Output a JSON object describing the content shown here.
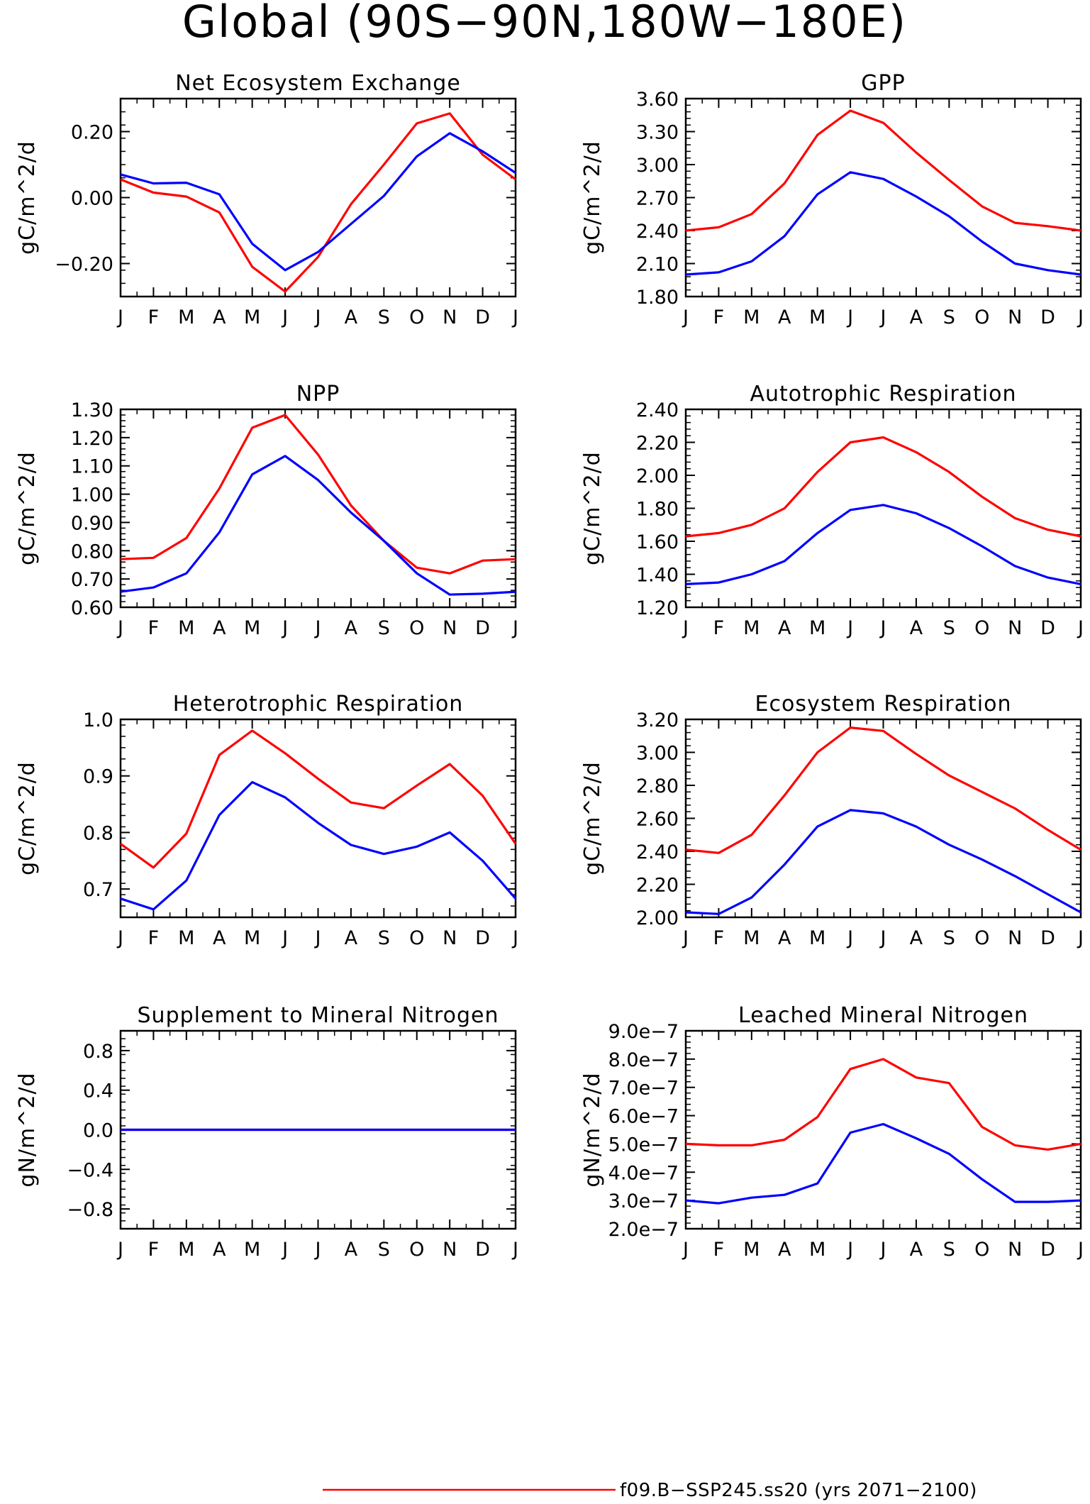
{
  "figure": {
    "title": "Global (90S−90N,180W−180E)",
    "legend": [
      {
        "label": "f09.B−SSP245.ss20 (yrs 2071−2100)",
        "color": "#ff0000"
      }
    ]
  },
  "colors": {
    "series_red": "#ff0000",
    "series_blue": "#0000ff"
  },
  "chart_data": [
    {
      "type": "line",
      "title": "Net Ecosystem Exchange",
      "ylabel": "gC/m^2/d",
      "categories": [
        "J",
        "F",
        "M",
        "A",
        "M",
        "J",
        "J",
        "A",
        "S",
        "O",
        "N",
        "D",
        "J"
      ],
      "ylim": [
        -0.3,
        0.3
      ],
      "yticks": [
        -0.2,
        0.0,
        0.2
      ],
      "ytick_labels": [
        "−0.20",
        "0.00",
        "0.20"
      ],
      "series": [
        {
          "color": "#ff0000",
          "values": [
            0.055,
            0.015,
            0.003,
            -0.045,
            -0.21,
            -0.285,
            -0.18,
            -0.02,
            0.1,
            0.225,
            0.255,
            0.13,
            0.055
          ]
        },
        {
          "color": "#0000ff",
          "values": [
            0.07,
            0.043,
            0.045,
            0.01,
            -0.14,
            -0.22,
            -0.165,
            -0.08,
            0.005,
            0.125,
            0.195,
            0.14,
            0.075
          ]
        }
      ]
    },
    {
      "type": "line",
      "title": "GPP",
      "ylabel": "gC/m^2/d",
      "categories": [
        "J",
        "F",
        "M",
        "A",
        "M",
        "J",
        "J",
        "A",
        "S",
        "O",
        "N",
        "D",
        "J"
      ],
      "ylim": [
        1.8,
        3.6
      ],
      "yticks": [
        1.8,
        2.1,
        2.4,
        2.7,
        3.0,
        3.3,
        3.6
      ],
      "ytick_labels": [
        "1.80",
        "2.10",
        "2.40",
        "2.70",
        "3.00",
        "3.30",
        "3.60"
      ],
      "series": [
        {
          "color": "#ff0000",
          "values": [
            2.4,
            2.43,
            2.55,
            2.83,
            3.27,
            3.49,
            3.38,
            3.11,
            2.86,
            2.62,
            2.47,
            2.44,
            2.4
          ]
        },
        {
          "color": "#0000ff",
          "values": [
            2.0,
            2.02,
            2.12,
            2.35,
            2.73,
            2.93,
            2.87,
            2.71,
            2.53,
            2.3,
            2.1,
            2.04,
            2.0
          ]
        }
      ]
    },
    {
      "type": "line",
      "title": "NPP",
      "ylabel": "gC/m^2/d",
      "categories": [
        "J",
        "F",
        "M",
        "A",
        "M",
        "J",
        "J",
        "A",
        "S",
        "O",
        "N",
        "D",
        "J"
      ],
      "ylim": [
        0.6,
        1.3
      ],
      "yticks": [
        0.6,
        0.7,
        0.8,
        0.9,
        1.0,
        1.1,
        1.2,
        1.3
      ],
      "ytick_labels": [
        "0.60",
        "0.70",
        "0.80",
        "0.90",
        "1.00",
        "1.10",
        "1.20",
        "1.30"
      ],
      "series": [
        {
          "color": "#ff0000",
          "values": [
            0.77,
            0.775,
            0.845,
            1.02,
            1.235,
            1.28,
            1.14,
            0.96,
            0.835,
            0.74,
            0.72,
            0.765,
            0.77
          ]
        },
        {
          "color": "#0000ff",
          "values": [
            0.655,
            0.67,
            0.72,
            0.865,
            1.07,
            1.135,
            1.05,
            0.935,
            0.835,
            0.72,
            0.645,
            0.648,
            0.655
          ]
        }
      ]
    },
    {
      "type": "line",
      "title": "Autotrophic Respiration",
      "ylabel": "gC/m^2/d",
      "categories": [
        "J",
        "F",
        "M",
        "A",
        "M",
        "J",
        "J",
        "A",
        "S",
        "O",
        "N",
        "D",
        "J"
      ],
      "ylim": [
        1.2,
        2.4
      ],
      "yticks": [
        1.2,
        1.4,
        1.6,
        1.8,
        2.0,
        2.2,
        2.4
      ],
      "ytick_labels": [
        "1.20",
        "1.40",
        "1.60",
        "1.80",
        "2.00",
        "2.20",
        "2.40"
      ],
      "series": [
        {
          "color": "#ff0000",
          "values": [
            1.63,
            1.65,
            1.7,
            1.8,
            2.02,
            2.2,
            2.23,
            2.14,
            2.02,
            1.87,
            1.74,
            1.67,
            1.63
          ]
        },
        {
          "color": "#0000ff",
          "values": [
            1.34,
            1.35,
            1.4,
            1.48,
            1.65,
            1.79,
            1.82,
            1.77,
            1.68,
            1.57,
            1.45,
            1.38,
            1.34
          ]
        }
      ]
    },
    {
      "type": "line",
      "title": "Heterotrophic Respiration",
      "ylabel": "gC/m^2/d",
      "categories": [
        "J",
        "F",
        "M",
        "A",
        "M",
        "J",
        "J",
        "A",
        "S",
        "O",
        "N",
        "D",
        "J"
      ],
      "ylim": [
        0.65,
        1.0
      ],
      "yticks": [
        0.7,
        0.8,
        0.9,
        1.0
      ],
      "ytick_labels": [
        "0.7",
        "0.8",
        "0.9",
        "1.0"
      ],
      "series": [
        {
          "color": "#ff0000",
          "values": [
            0.78,
            0.738,
            0.798,
            0.937,
            0.98,
            0.94,
            0.895,
            0.853,
            0.843,
            0.883,
            0.921,
            0.865,
            0.78
          ]
        },
        {
          "color": "#0000ff",
          "values": [
            0.683,
            0.664,
            0.715,
            0.831,
            0.889,
            0.862,
            0.817,
            0.778,
            0.762,
            0.775,
            0.8,
            0.75,
            0.683
          ]
        }
      ]
    },
    {
      "type": "line",
      "title": "Ecosystem Respiration",
      "ylabel": "gC/m^2/d",
      "categories": [
        "J",
        "F",
        "M",
        "A",
        "M",
        "J",
        "J",
        "A",
        "S",
        "O",
        "N",
        "D",
        "J"
      ],
      "ylim": [
        2.0,
        3.2
      ],
      "yticks": [
        2.0,
        2.2,
        2.4,
        2.6,
        2.8,
        3.0,
        3.2
      ],
      "ytick_labels": [
        "2.00",
        "2.20",
        "2.40",
        "2.60",
        "2.80",
        "3.00",
        "3.20"
      ],
      "series": [
        {
          "color": "#ff0000",
          "values": [
            2.41,
            2.39,
            2.5,
            2.74,
            3.0,
            3.15,
            3.13,
            2.99,
            2.86,
            2.76,
            2.66,
            2.53,
            2.41
          ]
        },
        {
          "color": "#0000ff",
          "values": [
            2.03,
            2.02,
            2.12,
            2.32,
            2.55,
            2.65,
            2.63,
            2.55,
            2.44,
            2.35,
            2.25,
            2.14,
            2.03
          ]
        }
      ]
    },
    {
      "type": "line",
      "title": "Supplement to Mineral Nitrogen",
      "ylabel": "gN/m^2/d",
      "categories": [
        "J",
        "F",
        "M",
        "A",
        "M",
        "J",
        "J",
        "A",
        "S",
        "O",
        "N",
        "D",
        "J"
      ],
      "ylim": [
        -1.0,
        1.0
      ],
      "yticks": [
        -0.8,
        -0.4,
        0.0,
        0.4,
        0.8
      ],
      "ytick_labels": [
        "−0.8",
        "−0.4",
        "0.0",
        "0.4",
        "0.8"
      ],
      "series": [
        {
          "color": "#ff0000",
          "values": [
            0,
            0,
            0,
            0,
            0,
            0,
            0,
            0,
            0,
            0,
            0,
            0,
            0
          ]
        },
        {
          "color": "#0000ff",
          "values": [
            0,
            0,
            0,
            0,
            0,
            0,
            0,
            0,
            0,
            0,
            0,
            0,
            0
          ]
        }
      ]
    },
    {
      "type": "line",
      "title": "Leached Mineral Nitrogen",
      "ylabel": "gN/m^2/d",
      "categories": [
        "J",
        "F",
        "M",
        "A",
        "M",
        "J",
        "J",
        "A",
        "S",
        "O",
        "N",
        "D",
        "J"
      ],
      "ylim": [
        2e-07,
        9e-07
      ],
      "yticks": [
        2e-07,
        3e-07,
        4e-07,
        5e-07,
        6e-07,
        7e-07,
        8e-07,
        9e-07
      ],
      "ytick_labels": [
        "2.0e−7",
        "3.0e−7",
        "4.0e−7",
        "5.0e−7",
        "6.0e−7",
        "7.0e−7",
        "8.0e−7",
        "9.0e−7"
      ],
      "series": [
        {
          "color": "#ff0000",
          "values": [
            5e-07,
            4.95e-07,
            4.95e-07,
            5.15e-07,
            5.95e-07,
            7.65e-07,
            8e-07,
            7.35e-07,
            7.15e-07,
            5.6e-07,
            4.95e-07,
            4.8e-07,
            5e-07
          ]
        },
        {
          "color": "#0000ff",
          "values": [
            3e-07,
            2.9e-07,
            3.1e-07,
            3.2e-07,
            3.6e-07,
            5.4e-07,
            5.7e-07,
            5.2e-07,
            4.65e-07,
            3.75e-07,
            2.95e-07,
            2.95e-07,
            3e-07
          ]
        }
      ]
    }
  ]
}
